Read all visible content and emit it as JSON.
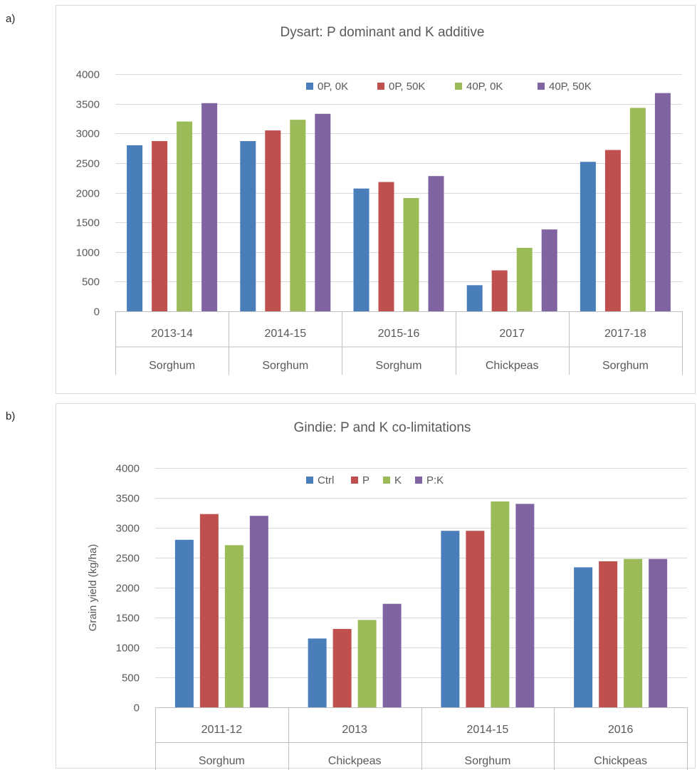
{
  "panels": {
    "a": "a)",
    "b": "b)"
  },
  "chart_data": [
    {
      "type": "bar",
      "title": "Dysart: P dominant and K additive",
      "xlabel": "",
      "ylabel": "",
      "ylim": [
        0,
        4000
      ],
      "yticks": [
        0,
        500,
        1000,
        1500,
        2000,
        2500,
        3000,
        3500,
        4000
      ],
      "grid": true,
      "legend_position": "top",
      "categories": [
        {
          "year": "2013-14",
          "crop": "Sorghum"
        },
        {
          "year": "2014-15",
          "crop": "Sorghum"
        },
        {
          "year": "2015-16",
          "crop": "Sorghum"
        },
        {
          "year": "2017",
          "crop": "Chickpeas"
        },
        {
          "year": "2017-18",
          "crop": "Sorghum"
        }
      ],
      "series": [
        {
          "name": "0P, 0K",
          "color": "#4a7ebb",
          "values": [
            2800,
            2870,
            2070,
            440,
            2520
          ]
        },
        {
          "name": "0P, 50K",
          "color": "#c0504d",
          "values": [
            2870,
            3050,
            2180,
            690,
            2720
          ]
        },
        {
          "name": "40P, 0K",
          "color": "#9bbb59",
          "values": [
            3200,
            3230,
            1910,
            1070,
            3430
          ]
        },
        {
          "name": "40P, 50K",
          "color": "#8064a2",
          "values": [
            3510,
            3330,
            2280,
            1380,
            3680
          ]
        }
      ]
    },
    {
      "type": "bar",
      "title": "Gindie:  P and K co-limitations",
      "xlabel": "",
      "ylabel": "Grain yield (kg/ha)",
      "ylim": [
        0,
        4000
      ],
      "yticks": [
        0,
        500,
        1000,
        1500,
        2000,
        2500,
        3000,
        3500,
        4000
      ],
      "grid": true,
      "legend_position": "top",
      "categories": [
        {
          "year": "2011-12",
          "crop": "Sorghum"
        },
        {
          "year": "2013",
          "crop": "Chickpeas"
        },
        {
          "year": "2014-15",
          "crop": "Sorghum"
        },
        {
          "year": "2016",
          "crop": "Chickpeas"
        }
      ],
      "series": [
        {
          "name": "Ctrl",
          "color": "#4a7ebb",
          "values": [
            2800,
            1150,
            2950,
            2340
          ]
        },
        {
          "name": "P",
          "color": "#c0504d",
          "values": [
            3230,
            1310,
            2950,
            2440
          ]
        },
        {
          "name": "K",
          "color": "#9bbb59",
          "values": [
            2710,
            1460,
            3440,
            2480
          ]
        },
        {
          "name": "P:K",
          "color": "#8064a2",
          "values": [
            3200,
            1730,
            3400,
            2480
          ]
        }
      ]
    }
  ]
}
